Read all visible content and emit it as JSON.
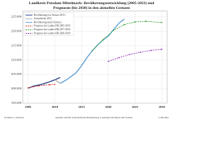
{
  "chart_data": {
    "type": "line",
    "title": "Landkreis Potsdam-Mittelmark: Bevölkerungsentwicklung (2005-2023) und Prognosen (bis 2030) in den aktuellen Grenzen",
    "series": [
      {
        "name": "Bevölkerung (vor Zensus 2011)",
        "color": "#1f3c88",
        "dashed": false,
        "marker": false,
        "x": [
          2005,
          2006,
          2007,
          2008,
          2009,
          2010,
          2011
        ],
        "values": [
          200200,
          200900,
          201300,
          201800,
          202400,
          203100,
          203900
        ]
      },
      {
        "name": "Zensuslücke 2011",
        "color": "#b0b0b0",
        "dashed": false,
        "marker": false,
        "x": [
          2010,
          2011
        ],
        "values": [
          203100,
          201900
        ]
      },
      {
        "name": "Bevölkerung (nach Zensus)",
        "color": "#5a9bd5",
        "dashed": false,
        "marker": false,
        "x": [
          2011,
          2012,
          2013,
          2014,
          2015,
          2016,
          2017,
          2018,
          2019,
          2020,
          2021,
          2022,
          2023
        ],
        "values": [
          201900,
          202900,
          204200,
          205600,
          208000,
          210800,
          213200,
          215200,
          216900,
          218300,
          220600,
          222800,
          224200
        ]
      },
      {
        "name": "Prognose des Landes BB 2005-2030",
        "color": "#d0312d",
        "dashed": true,
        "marker": true,
        "x": [
          2005,
          2006,
          2007,
          2008,
          2009,
          2010
        ],
        "values": [
          200300,
          200700,
          201000,
          201200,
          201400,
          201500
        ]
      },
      {
        "name": "Prognose des Landes BB 2017-2030",
        "color": "#2ca02c",
        "dashed": true,
        "marker": true,
        "x": [
          2017,
          2019,
          2021,
          2023,
          2025,
          2027,
          2030
        ],
        "values": [
          213200,
          217000,
          220300,
          222300,
          223200,
          223400,
          223000
        ]
      },
      {
        "name": "Prognose des Landes BB 2020-2030",
        "color": "#8e2fb5",
        "dashed": true,
        "marker": true,
        "x": [
          2020,
          2022,
          2024,
          2026,
          2028,
          2030
        ],
        "values": [
          209500,
          210800,
          211900,
          212700,
          213300,
          213700
        ]
      }
    ],
    "xlim": [
      2004,
      2031
    ],
    "xticks": [
      2005,
      2010,
      2015,
      2020,
      2025,
      2030
    ],
    "ylim": [
      195000,
      227000
    ],
    "yticks": [
      {
        "value": 195000,
        "label": "195.000"
      },
      {
        "value": 200000,
        "label": "200.000"
      },
      {
        "value": 205000,
        "label": "205.000"
      },
      {
        "value": 210000,
        "label": "210.000"
      },
      {
        "value": 215000,
        "label": "215.000"
      },
      {
        "value": 220000,
        "label": "220.000"
      },
      {
        "value": 225000,
        "label": "225.000"
      }
    ],
    "grid": true,
    "footer": {
      "author": "by Hans G. Oberlack",
      "source": "Quellen: Amt für Statistik Berlin-Brandenburg, Landesamt für Bauen und Verkehr",
      "date": "11.08.2024"
    }
  }
}
